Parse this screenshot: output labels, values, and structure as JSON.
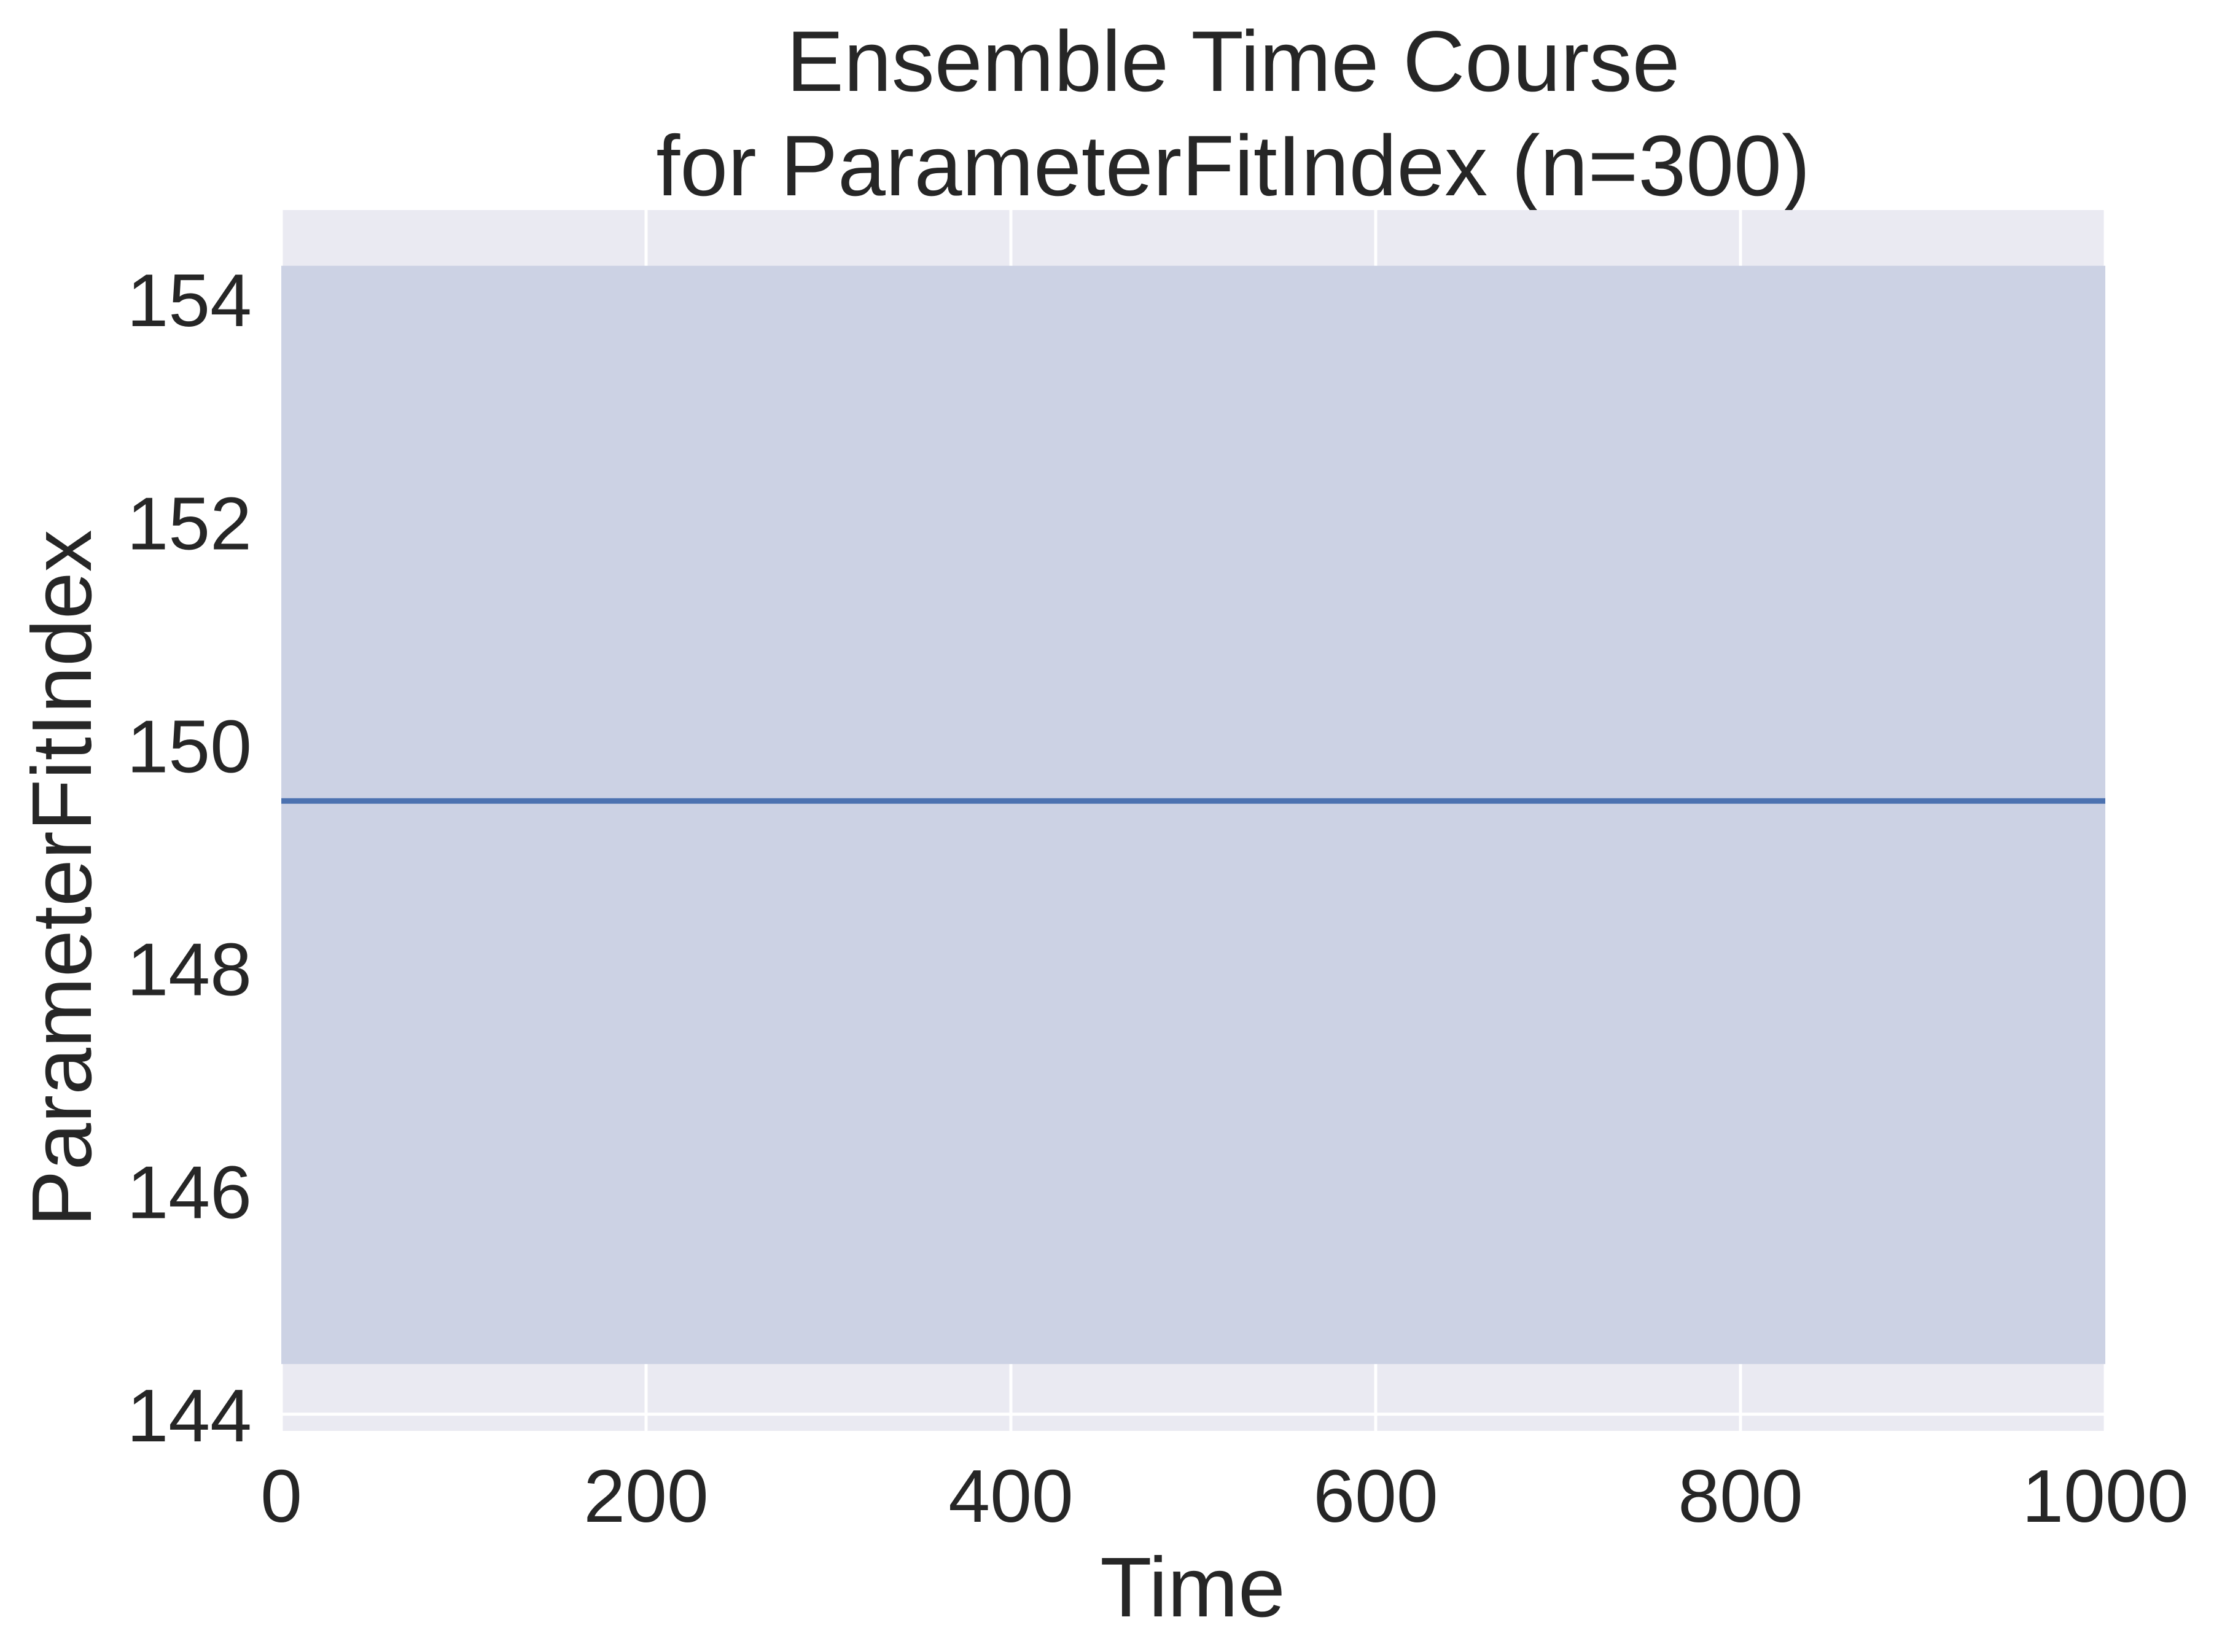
{
  "chart_data": {
    "type": "line",
    "title": "Ensemble Time Course",
    "subtitle": "for ParameterFitIndex (n=300)",
    "xlabel": "Time",
    "ylabel": "ParameterFitIndex",
    "xlim": [
      0,
      1000
    ],
    "ylim": [
      143.85,
      154.8
    ],
    "x_ticks": [
      0,
      200,
      400,
      600,
      800,
      1000
    ],
    "y_ticks": [
      144,
      146,
      148,
      150,
      152,
      154
    ],
    "grid": true,
    "series": [
      {
        "x": [
          0,
          1000
        ],
        "y": [
          149.5,
          149.5
        ],
        "band": {
          "lower": [
            144.45,
            144.45
          ],
          "upper": [
            154.3,
            154.3
          ]
        }
      }
    ],
    "colors": {
      "plot_background": "#EAEAF2",
      "grid": "#FFFFFF",
      "line": "#4C72B0",
      "band": "#CCD2E4",
      "text": "#262626"
    }
  }
}
